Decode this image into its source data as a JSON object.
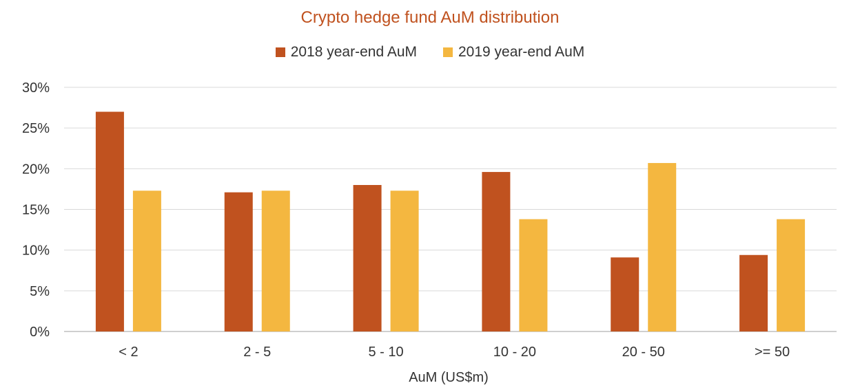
{
  "chart_data": {
    "type": "bar",
    "title": "Crypto hedge fund AuM distribution",
    "xlabel": "AuM (US$m)",
    "ylabel": "",
    "categories": [
      "< 2",
      "2 - 5",
      "5 - 10",
      "10 - 20",
      "20 - 50",
      ">= 50"
    ],
    "series": [
      {
        "name": "2018 year-end AuM",
        "color": "#C0521F",
        "values": [
          27.0,
          17.1,
          18.0,
          19.6,
          9.1,
          9.4
        ]
      },
      {
        "name": "2019 year-end AuM",
        "color": "#F4B740",
        "values": [
          17.3,
          17.3,
          17.3,
          13.8,
          20.7,
          13.8
        ]
      }
    ],
    "ylim": [
      0,
      30
    ],
    "yticks": [
      "0%",
      "5%",
      "10%",
      "15%",
      "20%",
      "25%",
      "30%"
    ],
    "grid": true,
    "legend": "top-center",
    "title_color": "#C0521F"
  }
}
